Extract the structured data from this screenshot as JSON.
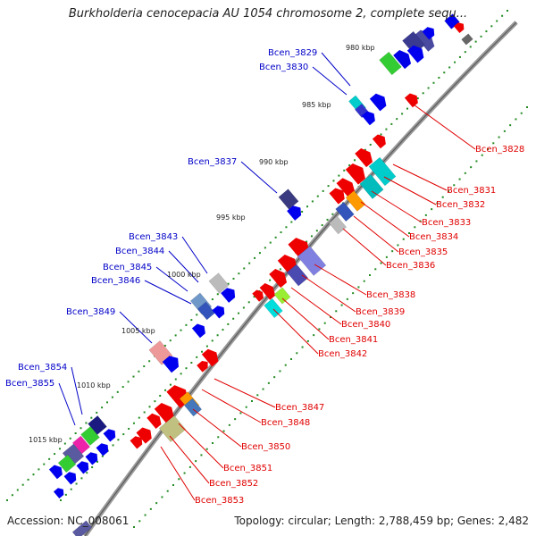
{
  "title": "Burkholderia cenocepacia AU 1054 chromosome 2, complete sequ...",
  "footer": {
    "accession_label": "Accession:",
    "accession": "NC_008061",
    "summary": "Topology: circular; Length: 2,788,459 bp; Genes: 2,482"
  },
  "colors": {
    "forward_label": "#0000c8",
    "reverse_label": "#e00000",
    "backbone": "#888888",
    "tick": "#228b22"
  },
  "kbp_ticks": [
    {
      "label": "980 kbp"
    },
    {
      "label": "985 kbp"
    },
    {
      "label": "990 kbp"
    },
    {
      "label": "995 kbp"
    },
    {
      "label": "1000 kbp"
    },
    {
      "label": "1005 kbp"
    },
    {
      "label": "1010 kbp"
    },
    {
      "label": "1015 kbp"
    }
  ],
  "gene_labels": [
    {
      "name": "Bcen_3828",
      "strand": "reverse"
    },
    {
      "name": "Bcen_3829",
      "strand": "forward"
    },
    {
      "name": "Bcen_3830",
      "strand": "forward"
    },
    {
      "name": "Bcen_3831",
      "strand": "reverse"
    },
    {
      "name": "Bcen_3832",
      "strand": "reverse"
    },
    {
      "name": "Bcen_3833",
      "strand": "reverse"
    },
    {
      "name": "Bcen_3834",
      "strand": "reverse"
    },
    {
      "name": "Bcen_3835",
      "strand": "reverse"
    },
    {
      "name": "Bcen_3836",
      "strand": "reverse"
    },
    {
      "name": "Bcen_3837",
      "strand": "forward"
    },
    {
      "name": "Bcen_3838",
      "strand": "reverse"
    },
    {
      "name": "Bcen_3839",
      "strand": "reverse"
    },
    {
      "name": "Bcen_3840",
      "strand": "reverse"
    },
    {
      "name": "Bcen_3841",
      "strand": "reverse"
    },
    {
      "name": "Bcen_3842",
      "strand": "reverse"
    },
    {
      "name": "Bcen_3843",
      "strand": "forward"
    },
    {
      "name": "Bcen_3844",
      "strand": "forward"
    },
    {
      "name": "Bcen_3845",
      "strand": "forward"
    },
    {
      "name": "Bcen_3846",
      "strand": "forward"
    },
    {
      "name": "Bcen_3847",
      "strand": "reverse"
    },
    {
      "name": "Bcen_3848",
      "strand": "reverse"
    },
    {
      "name": "Bcen_3849",
      "strand": "forward"
    },
    {
      "name": "Bcen_3850",
      "strand": "reverse"
    },
    {
      "name": "Bcen_3851",
      "strand": "reverse"
    },
    {
      "name": "Bcen_3852",
      "strand": "reverse"
    },
    {
      "name": "Bcen_3853",
      "strand": "reverse"
    },
    {
      "name": "Bcen_3854",
      "strand": "forward"
    },
    {
      "name": "Bcen_3855",
      "strand": "forward"
    }
  ]
}
